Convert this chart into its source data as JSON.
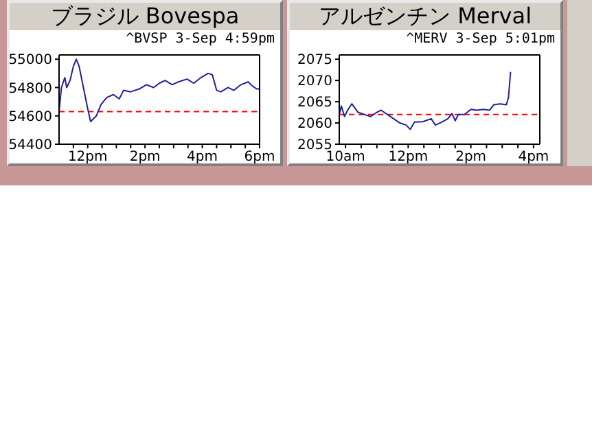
{
  "chart_data": [
    {
      "type": "line",
      "title": "ブラジル Bovespa",
      "subtitle": "^BVSP 3-Sep 4:59pm",
      "grid": false,
      "legend": false,
      "marker": "none",
      "line_style": "solid",
      "xlim": [
        "--09-03T11:00",
        "--09-03T18:00"
      ],
      "xticks": [
        {
          "value": "--09-03T11:30",
          "label": null
        },
        {
          "value": "--09-03T12:00",
          "label": "12pm"
        },
        {
          "value": "--09-03T12:30",
          "label": null
        },
        {
          "value": "--09-03T13:00",
          "label": null
        },
        {
          "value": "--09-03T13:30",
          "label": null
        },
        {
          "value": "--09-03T14:00",
          "label": "2pm"
        },
        {
          "value": "--09-03T14:30",
          "label": null
        },
        {
          "value": "--09-03T15:00",
          "label": null
        },
        {
          "value": "--09-03T15:30",
          "label": null
        },
        {
          "value": "--09-03T16:00",
          "label": "4pm"
        },
        {
          "value": "--09-03T16:30",
          "label": null
        },
        {
          "value": "--09-03T17:00",
          "label": null
        },
        {
          "value": "--09-03T17:30",
          "label": null
        },
        {
          "value": "--09-03T18:00",
          "label": "6pm"
        }
      ],
      "ylim": [
        54400,
        55030
      ],
      "yticks": [
        54400,
        54600,
        54800,
        55000
      ],
      "ref_lines": [
        {
          "axis": "y",
          "value": 54630,
          "color": "#ff0000",
          "line_style": "dashed"
        }
      ],
      "series": [
        {
          "color": "#2020a0",
          "x": [
            "--09-03T11:00",
            "--09-03T11:05",
            "--09-03T11:12",
            "--09-03T11:16",
            "--09-03T11:23",
            "--09-03T11:30",
            "--09-03T11:36",
            "--09-03T11:42",
            "--09-03T11:51",
            "--09-03T12:00",
            "--09-03T12:06",
            "--09-03T12:18",
            "--09-03T12:28",
            "--09-03T12:40",
            "--09-03T12:54",
            "--09-03T13:06",
            "--09-03T13:15",
            "--09-03T13:30",
            "--09-03T13:48",
            "--09-03T14:03",
            "--09-03T14:18",
            "--09-03T14:30",
            "--09-03T14:42",
            "--09-03T14:57",
            "--09-03T15:10",
            "--09-03T15:28",
            "--09-03T15:42",
            "--09-03T15:57",
            "--09-03T16:12",
            "--09-03T16:21",
            "--09-03T16:30",
            "--09-03T16:39",
            "--09-03T16:54",
            "--09-03T17:06",
            "--09-03T17:21",
            "--09-03T17:36",
            "--09-03T17:45",
            "--09-03T17:54",
            "--09-03T18:00"
          ],
          "values": [
            54630,
            54800,
            54870,
            54800,
            54850,
            54950,
            55000,
            54950,
            54800,
            54650,
            54560,
            54600,
            54680,
            54730,
            54750,
            54720,
            54780,
            54770,
            54790,
            54820,
            54800,
            54830,
            54850,
            54820,
            54840,
            54860,
            54830,
            54870,
            54900,
            54890,
            54780,
            54770,
            54800,
            54780,
            54820,
            54840,
            54810,
            54790,
            54790
          ]
        }
      ]
    },
    {
      "type": "line",
      "title": "アルゼンチン Merval",
      "subtitle": "^MERV 3-Sep 5:01pm",
      "grid": false,
      "legend": false,
      "marker": "none",
      "line_style": "solid",
      "xlim": [
        "--09-03T09:48",
        "--09-03T16:12"
      ],
      "xticks": [
        {
          "value": "--09-03T10:00",
          "label": "10am"
        },
        {
          "value": "--09-03T10:30",
          "label": null
        },
        {
          "value": "--09-03T11:00",
          "label": null
        },
        {
          "value": "--09-03T11:30",
          "label": null
        },
        {
          "value": "--09-03T12:00",
          "label": "12pm"
        },
        {
          "value": "--09-03T12:30",
          "label": null
        },
        {
          "value": "--09-03T13:00",
          "label": null
        },
        {
          "value": "--09-03T13:30",
          "label": null
        },
        {
          "value": "--09-03T14:00",
          "label": "2pm"
        },
        {
          "value": "--09-03T14:30",
          "label": null
        },
        {
          "value": "--09-03T15:00",
          "label": null
        },
        {
          "value": "--09-03T15:30",
          "label": null
        },
        {
          "value": "--09-03T16:00",
          "label": "4pm"
        }
      ],
      "ylim": [
        2055,
        2076
      ],
      "yticks": [
        2055,
        2060,
        2065,
        2070,
        2075
      ],
      "ref_lines": [
        {
          "axis": "y",
          "value": 2062,
          "color": "#ff0000",
          "line_style": "dashed"
        }
      ],
      "series": [
        {
          "color": "#2020a0",
          "x": [
            "--09-03T09:48",
            "--09-03T09:52",
            "--09-03T09:58",
            "--09-03T10:04",
            "--09-03T10:12",
            "--09-03T10:24",
            "--09-03T10:36",
            "--09-03T10:48",
            "--09-03T11:00",
            "--09-03T11:08",
            "--09-03T11:20",
            "--09-03T11:32",
            "--09-03T11:44",
            "--09-03T11:56",
            "--09-03T12:04",
            "--09-03T12:12",
            "--09-03T12:28",
            "--09-03T12:44",
            "--09-03T12:52",
            "--09-03T13:04",
            "--09-03T13:16",
            "--09-03T13:24",
            "--09-03T13:30",
            "--09-03T13:36",
            "--09-03T13:48",
            "--09-03T14:00",
            "--09-03T14:12",
            "--09-03T14:24",
            "--09-03T14:36",
            "--09-03T14:44",
            "--09-03T14:56",
            "--09-03T15:08",
            "--09-03T15:12",
            "--09-03T15:16"
          ],
          "values": [
            2062,
            2064,
            2061.5,
            2063,
            2064.5,
            2062.5,
            2062,
            2061.5,
            2062.5,
            2063,
            2062,
            2061,
            2060,
            2059.5,
            2058.5,
            2060.2,
            2060.3,
            2061,
            2059.5,
            2060.2,
            2061,
            2062.2,
            2060.5,
            2062,
            2062,
            2063.2,
            2063,
            2063.2,
            2063,
            2064.3,
            2064.5,
            2064.3,
            2066,
            2072
          ]
        }
      ]
    }
  ]
}
